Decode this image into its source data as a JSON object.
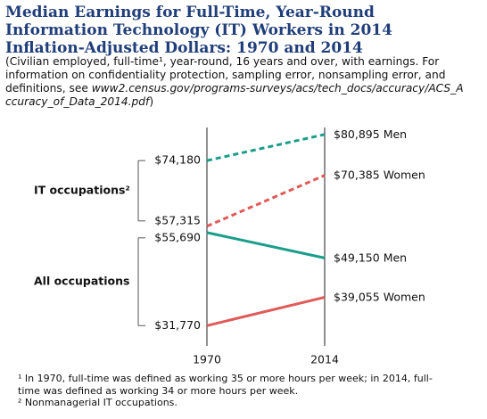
{
  "chart_data": {
    "type": "slope",
    "title": "Median Earnings for Full-Time, Year-Round Information Technology (IT) Workers in 2014 Inflation-Adjusted Dollars: 1970 and 2014",
    "subtitle": "(Civilian employed, full-time¹, year-round, 16 years and over, with earnings. For information on confidentiality protection, sampling error, nonsampling error, and definitions, see",
    "subtitle_url": "www2.census.gov/programs-surveys/acs/tech_docs/accuracy/ACS_Accuracy_of_Data_2014.pdf",
    "subtitle_end": ")",
    "x": [
      1970,
      2014
    ],
    "ylim": [
      30000,
      82000
    ],
    "groups": [
      {
        "name": "IT occupations²",
        "series": [
          {
            "name": "Men",
            "color": "#1a9e8a",
            "dashed": true,
            "values": [
              74180,
              80895
            ],
            "value_labels": [
              "$74,180",
              "$80,895"
            ]
          },
          {
            "name": "Women",
            "color": "#e05a58",
            "dashed": true,
            "values": [
              57315,
              70385
            ],
            "value_labels": [
              "$57,315",
              "$70,385"
            ]
          }
        ]
      },
      {
        "name": "All occupations",
        "series": [
          {
            "name": "Men",
            "color": "#1a9e8a",
            "dashed": false,
            "values": [
              55690,
              49150
            ],
            "value_labels": [
              "$55,690",
              "$49,150"
            ]
          },
          {
            "name": "Women",
            "color": "#e05a58",
            "dashed": false,
            "values": [
              31770,
              39055
            ],
            "value_labels": [
              "$31,770",
              "$39,055"
            ]
          }
        ]
      }
    ],
    "footnotes": [
      "¹ In 1970, full-time was defined as working 35 or more hours per week; in 2014, full-time was defined as working 34 or more hours per week.",
      "² Nonmanagerial IT occupations."
    ]
  }
}
